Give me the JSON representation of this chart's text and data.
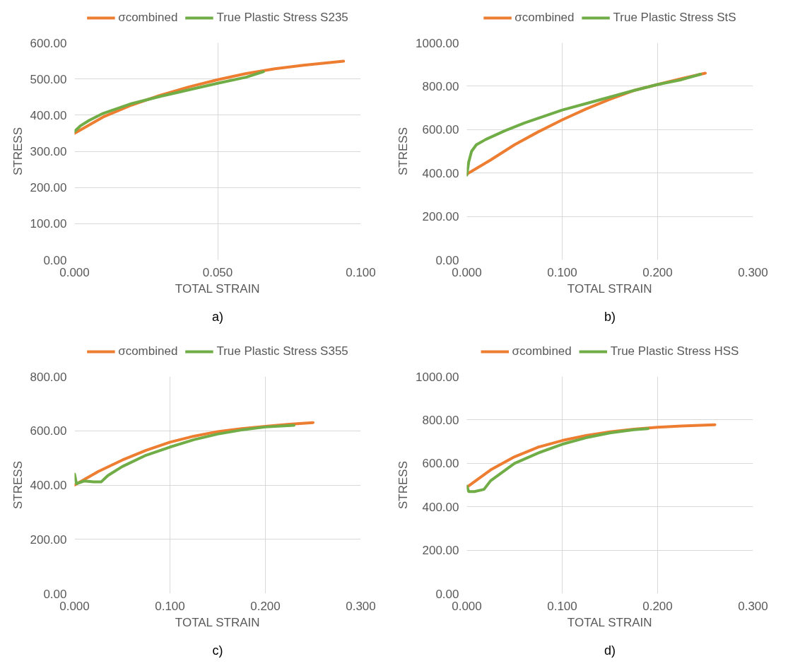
{
  "chart_data": [
    {
      "type": "line",
      "xlabel": "TOTAL STRAIN",
      "ylabel": "STRESS",
      "annotations": [
        "a)"
      ],
      "legend": "top",
      "grid": true,
      "xlim": [
        0,
        0.1
      ],
      "xticks": [
        {
          "value": 0,
          "label": "0.000"
        },
        {
          "value": 0.05,
          "label": "0.050"
        },
        {
          "value": 0.1,
          "label": "0.100"
        }
      ],
      "ylim": [
        0,
        600
      ],
      "yticks": [
        {
          "value": 0,
          "label": "0.00"
        },
        {
          "value": 100,
          "label": "100.00"
        },
        {
          "value": 200,
          "label": "200.00"
        },
        {
          "value": 300,
          "label": "300.00"
        },
        {
          "value": 400,
          "label": "400.00"
        },
        {
          "value": 500,
          "label": "500.00"
        },
        {
          "value": 600,
          "label": "600.00"
        }
      ],
      "series": [
        {
          "name": "σcombined",
          "color": "#ed7d31",
          "x": [
            0,
            0.01,
            0.02,
            0.03,
            0.04,
            0.05,
            0.06,
            0.07,
            0.08,
            0.094
          ],
          "values": [
            350,
            395,
            428,
            455,
            478,
            498,
            515,
            528,
            538,
            549
          ]
        },
        {
          "name": "True Plastic Stress S235",
          "color": "#70ad47",
          "x": [
            0,
            0.002,
            0.005,
            0.01,
            0.02,
            0.03,
            0.04,
            0.05,
            0.06,
            0.066
          ],
          "values": [
            355,
            370,
            385,
            405,
            432,
            452,
            470,
            488,
            505,
            520
          ]
        }
      ]
    },
    {
      "type": "line",
      "xlabel": "TOTAL STRAIN",
      "ylabel": "STRESS",
      "annotations": [
        "b)"
      ],
      "legend": "top",
      "grid": true,
      "xlim": [
        0,
        0.3
      ],
      "xticks": [
        {
          "value": 0,
          "label": "0.000"
        },
        {
          "value": 0.1,
          "label": "0.100"
        },
        {
          "value": 0.2,
          "label": "0.200"
        },
        {
          "value": 0.3,
          "label": "0.300"
        }
      ],
      "ylim": [
        0,
        1000
      ],
      "yticks": [
        {
          "value": 0,
          "label": "0.00"
        },
        {
          "value": 200,
          "label": "200.00"
        },
        {
          "value": 400,
          "label": "400.00"
        },
        {
          "value": 600,
          "label": "600.00"
        },
        {
          "value": 800,
          "label": "800.00"
        },
        {
          "value": 1000,
          "label": "1000.00"
        }
      ],
      "series": [
        {
          "name": "σcombined",
          "color": "#ed7d31",
          "x": [
            0,
            0.025,
            0.05,
            0.075,
            0.1,
            0.125,
            0.15,
            0.175,
            0.2,
            0.225,
            0.25
          ],
          "values": [
            395,
            460,
            530,
            590,
            645,
            695,
            740,
            780,
            808,
            835,
            860
          ]
        },
        {
          "name": "True Plastic Stress StS",
          "color": "#70ad47",
          "x": [
            0,
            0.002,
            0.005,
            0.01,
            0.02,
            0.04,
            0.06,
            0.08,
            0.1,
            0.125,
            0.15,
            0.175,
            0.2,
            0.225,
            0.245
          ],
          "values": [
            390,
            450,
            500,
            530,
            555,
            595,
            630,
            660,
            690,
            720,
            750,
            780,
            808,
            830,
            855
          ]
        }
      ]
    },
    {
      "type": "line",
      "xlabel": "TOTAL STRAIN",
      "ylabel": "STRESS",
      "annotations": [
        "c)"
      ],
      "legend": "top",
      "grid": true,
      "xlim": [
        0,
        0.3
      ],
      "xticks": [
        {
          "value": 0,
          "label": "0.000"
        },
        {
          "value": 0.1,
          "label": "0.100"
        },
        {
          "value": 0.2,
          "label": "0.200"
        },
        {
          "value": 0.3,
          "label": "0.300"
        }
      ],
      "ylim": [
        0,
        800
      ],
      "yticks": [
        {
          "value": 0,
          "label": "0.00"
        },
        {
          "value": 200,
          "label": "200.00"
        },
        {
          "value": 400,
          "label": "400.00"
        },
        {
          "value": 600,
          "label": "600.00"
        },
        {
          "value": 800,
          "label": "800.00"
        }
      ],
      "series": [
        {
          "name": "σcombined",
          "color": "#ed7d31",
          "x": [
            0,
            0.025,
            0.05,
            0.075,
            0.1,
            0.125,
            0.15,
            0.175,
            0.2,
            0.225,
            0.25
          ],
          "values": [
            400,
            450,
            492,
            528,
            558,
            580,
            597,
            608,
            616,
            624,
            630
          ]
        },
        {
          "name": "True Plastic Stress S355",
          "color": "#70ad47",
          "x": [
            0,
            0.002,
            0.01,
            0.02,
            0.028,
            0.035,
            0.05,
            0.075,
            0.1,
            0.125,
            0.15,
            0.175,
            0.2,
            0.23
          ],
          "values": [
            440,
            405,
            415,
            412,
            412,
            435,
            468,
            510,
            540,
            567,
            588,
            603,
            614,
            620
          ]
        }
      ]
    },
    {
      "type": "line",
      "xlabel": "TOTAL STRAIN",
      "ylabel": "STRESS",
      "annotations": [
        "d)"
      ],
      "legend": "top",
      "grid": true,
      "xlim": [
        0,
        0.3
      ],
      "xticks": [
        {
          "value": 0,
          "label": "0.000"
        },
        {
          "value": 0.1,
          "label": "0.100"
        },
        {
          "value": 0.2,
          "label": "0.200"
        },
        {
          "value": 0.3,
          "label": "0.300"
        }
      ],
      "ylim": [
        0,
        1000
      ],
      "yticks": [
        {
          "value": 0,
          "label": "0.00"
        },
        {
          "value": 200,
          "label": "200.00"
        },
        {
          "value": 400,
          "label": "400.00"
        },
        {
          "value": 600,
          "label": "600.00"
        },
        {
          "value": 800,
          "label": "800.00"
        },
        {
          "value": 1000,
          "label": "1000.00"
        }
      ],
      "series": [
        {
          "name": "σcombined",
          "color": "#ed7d31",
          "x": [
            0,
            0.025,
            0.05,
            0.075,
            0.1,
            0.125,
            0.15,
            0.175,
            0.2,
            0.225,
            0.26
          ],
          "values": [
            490,
            570,
            630,
            675,
            705,
            728,
            745,
            757,
            766,
            772,
            778
          ]
        },
        {
          "name": "True Plastic Stress HSS",
          "color": "#70ad47",
          "x": [
            0,
            0.002,
            0.008,
            0.018,
            0.025,
            0.05,
            0.075,
            0.1,
            0.125,
            0.15,
            0.175,
            0.19
          ],
          "values": [
            495,
            470,
            470,
            480,
            520,
            600,
            648,
            688,
            718,
            740,
            755,
            760
          ]
        }
      ]
    }
  ]
}
